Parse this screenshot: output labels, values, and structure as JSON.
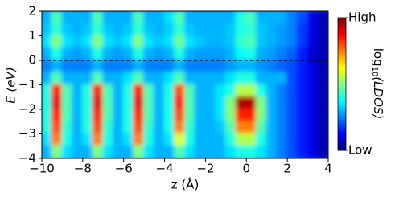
{
  "chart_data": {
    "type": "heatmap",
    "xlabel": "z (Å)",
    "ylabel": "E (eV)",
    "colorbar_label": [
      "log",
      "10",
      "(LDOS)"
    ],
    "colormap": "jet",
    "clim": [
      0,
      1
    ],
    "cticks": [
      {
        "value": 1,
        "label": "High"
      },
      {
        "value": 0,
        "label": "Low"
      }
    ],
    "xlim": [
      -10,
      4
    ],
    "xticks": [
      {
        "value": -10,
        "label": "−10"
      },
      {
        "value": -8,
        "label": "−8"
      },
      {
        "value": -6,
        "label": "−6"
      },
      {
        "value": -4,
        "label": "−4"
      },
      {
        "value": -2,
        "label": "−2"
      },
      0,
      2,
      4
    ],
    "ylim": [
      -4,
      2
    ],
    "yticks": [
      {
        "value": -4,
        "label": "−4"
      },
      {
        "value": -3,
        "label": "−3"
      },
      {
        "value": -2,
        "label": "−2"
      },
      {
        "value": -1,
        "label": "−1"
      },
      0,
      1,
      2
    ],
    "hline": 0,
    "x": [
      -9.75,
      -9.25,
      -8.75,
      -8.25,
      -7.75,
      -7.25,
      -6.75,
      -6.25,
      -5.75,
      -5.25,
      -4.75,
      -4.25,
      -3.75,
      -3.25,
      -2.75,
      -2.25,
      -1.75,
      -1.25,
      -0.75,
      -0.25,
      0.25,
      0.75,
      1.25,
      1.75,
      2.25,
      2.75,
      3.25,
      3.75
    ],
    "y": [
      1.75,
      1.25,
      0.75,
      0.25,
      -0.25,
      -0.75,
      -1.25,
      -1.75,
      -2.25,
      -2.75,
      -3.25,
      -3.75
    ],
    "values": [
      [
        0.3,
        0.45,
        0.3,
        0.3,
        0.3,
        0.45,
        0.3,
        0.3,
        0.3,
        0.45,
        0.3,
        0.3,
        0.35,
        0.45,
        0.3,
        0.3,
        0.3,
        0.3,
        0.3,
        0.4,
        0.45,
        0.3,
        0.3,
        0.3,
        0.25,
        0.2,
        0.1,
        0.05
      ],
      [
        0.32,
        0.42,
        0.32,
        0.3,
        0.32,
        0.42,
        0.32,
        0.3,
        0.32,
        0.42,
        0.32,
        0.3,
        0.33,
        0.42,
        0.32,
        0.3,
        0.3,
        0.3,
        0.32,
        0.4,
        0.42,
        0.32,
        0.3,
        0.28,
        0.25,
        0.18,
        0.1,
        0.05
      ],
      [
        0.35,
        0.5,
        0.35,
        0.32,
        0.35,
        0.5,
        0.35,
        0.32,
        0.35,
        0.5,
        0.35,
        0.32,
        0.35,
        0.48,
        0.35,
        0.32,
        0.3,
        0.3,
        0.32,
        0.42,
        0.45,
        0.32,
        0.3,
        0.28,
        0.25,
        0.18,
        0.1,
        0.05
      ],
      [
        0.3,
        0.4,
        0.3,
        0.28,
        0.3,
        0.4,
        0.3,
        0.28,
        0.3,
        0.4,
        0.3,
        0.28,
        0.3,
        0.4,
        0.3,
        0.28,
        0.28,
        0.28,
        0.3,
        0.38,
        0.4,
        0.3,
        0.28,
        0.25,
        0.22,
        0.15,
        0.08,
        0.05
      ],
      [
        0.25,
        0.3,
        0.25,
        0.25,
        0.25,
        0.3,
        0.25,
        0.25,
        0.25,
        0.3,
        0.25,
        0.25,
        0.25,
        0.3,
        0.25,
        0.25,
        0.25,
        0.25,
        0.28,
        0.3,
        0.3,
        0.27,
        0.25,
        0.22,
        0.2,
        0.15,
        0.1,
        0.05
      ],
      [
        0.3,
        0.45,
        0.3,
        0.3,
        0.3,
        0.45,
        0.3,
        0.3,
        0.35,
        0.45,
        0.3,
        0.3,
        0.35,
        0.45,
        0.3,
        0.3,
        0.3,
        0.3,
        0.35,
        0.4,
        0.4,
        0.3,
        0.3,
        0.3,
        0.2,
        0.15,
        0.1,
        0.05
      ],
      [
        0.4,
        0.85,
        0.45,
        0.3,
        0.4,
        0.85,
        0.45,
        0.3,
        0.4,
        0.85,
        0.45,
        0.3,
        0.4,
        0.8,
        0.45,
        0.3,
        0.3,
        0.35,
        0.4,
        0.55,
        0.55,
        0.4,
        0.3,
        0.25,
        0.2,
        0.15,
        0.1,
        0.05
      ],
      [
        0.4,
        0.9,
        0.45,
        0.3,
        0.4,
        0.9,
        0.45,
        0.3,
        0.4,
        0.9,
        0.45,
        0.3,
        0.4,
        0.85,
        0.45,
        0.3,
        0.3,
        0.35,
        0.5,
        0.95,
        0.95,
        0.5,
        0.3,
        0.25,
        0.2,
        0.15,
        0.1,
        0.05
      ],
      [
        0.4,
        0.85,
        0.45,
        0.3,
        0.4,
        0.85,
        0.45,
        0.3,
        0.4,
        0.85,
        0.45,
        0.3,
        0.4,
        0.8,
        0.45,
        0.3,
        0.3,
        0.35,
        0.5,
        0.85,
        0.85,
        0.5,
        0.3,
        0.25,
        0.2,
        0.15,
        0.1,
        0.05
      ],
      [
        0.4,
        0.8,
        0.42,
        0.3,
        0.4,
        0.8,
        0.42,
        0.3,
        0.4,
        0.8,
        0.42,
        0.3,
        0.4,
        0.75,
        0.42,
        0.3,
        0.3,
        0.32,
        0.45,
        0.75,
        0.75,
        0.45,
        0.3,
        0.25,
        0.2,
        0.15,
        0.1,
        0.05
      ],
      [
        0.35,
        0.75,
        0.4,
        0.3,
        0.35,
        0.75,
        0.4,
        0.3,
        0.35,
        0.75,
        0.4,
        0.3,
        0.35,
        0.6,
        0.4,
        0.3,
        0.3,
        0.3,
        0.4,
        0.55,
        0.55,
        0.4,
        0.3,
        0.25,
        0.2,
        0.15,
        0.1,
        0.05
      ],
      [
        0.3,
        0.5,
        0.35,
        0.3,
        0.3,
        0.5,
        0.35,
        0.3,
        0.3,
        0.5,
        0.35,
        0.3,
        0.3,
        0.45,
        0.35,
        0.3,
        0.3,
        0.3,
        0.35,
        0.4,
        0.4,
        0.35,
        0.3,
        0.25,
        0.2,
        0.15,
        0.1,
        0.05
      ]
    ]
  }
}
